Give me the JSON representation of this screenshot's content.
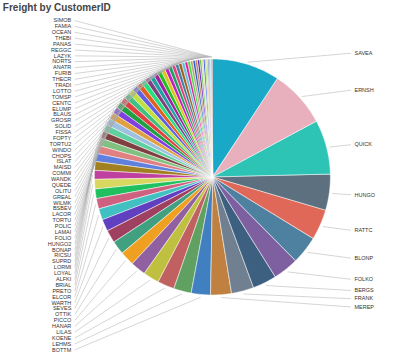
{
  "chart_data": {
    "type": "pie",
    "title": "Freight by CustomerID",
    "categories": [
      "SAVEA",
      "ERNSH",
      "QUICK",
      "HUNGO",
      "RATTC",
      "BLONP",
      "FOLKO",
      "BERGS",
      "FRANK",
      "MEREP",
      "BOTTM",
      "LEHMS",
      "KOENE",
      "LILAS",
      "HANAR",
      "PICCO",
      "OTTIK",
      "SEVES",
      "WARTH",
      "ELCOR",
      "PRETO",
      "BRIAL",
      "ALFKI",
      "LOYAL",
      "LORMI",
      "SUPRD",
      "RICSU",
      "BONAP",
      "HUNGO2",
      "FOLIO",
      "LAMAI",
      "POLIC",
      "TORTU",
      "LACOR",
      "BSBEV",
      "WILMK",
      "GREAL",
      "OLITU",
      "QUEDE",
      "WANDK",
      "COMMI",
      "MAISD",
      "ISLAT",
      "CHOPS",
      "WINDO",
      "TORTU2",
      "FOPTY",
      "FISSA",
      "SOLID",
      "GROSR",
      "BLAUS",
      "ELUMP",
      "CENTC",
      "TOMSP",
      "LOTTO",
      "TRADI",
      "THECR",
      "FURIB",
      "ANATR",
      "NORTS",
      "LAZYK",
      "REGGC",
      "PANAS",
      "THEBI",
      "OCEAN",
      "FAMIA",
      "SIMOB"
    ],
    "values": [
      8.5,
      7.2,
      6.8,
      4.5,
      3.8,
      3.5,
      3.2,
      3.0,
      2.8,
      2.6,
      2.4,
      2.2,
      2.1,
      2.0,
      1.9,
      1.8,
      1.7,
      1.6,
      1.5,
      1.4,
      1.3,
      1.2,
      1.2,
      1.1,
      1.1,
      1.0,
      1.0,
      0.95,
      0.9,
      0.88,
      0.85,
      0.82,
      0.8,
      0.78,
      0.75,
      0.72,
      0.7,
      0.68,
      0.65,
      0.62,
      0.6,
      0.58,
      0.55,
      0.52,
      0.5,
      0.48,
      0.46,
      0.44,
      0.42,
      0.4,
      0.38,
      0.36,
      0.34,
      0.32,
      0.3,
      0.28,
      0.26,
      0.24,
      0.22,
      0.2,
      0.18,
      0.16,
      0.14,
      0.12,
      0.1,
      0.1,
      0.1
    ],
    "colors": [
      "#1aa8c8",
      "#e8b0bc",
      "#2dc4b6",
      "#5d7080",
      "#e06858",
      "#4e80a0",
      "#7e60a0",
      "#3e6080",
      "#708090",
      "#c08040",
      "#4080c0",
      "#60a060",
      "#c06060",
      "#c0c040",
      "#9060a0",
      "#f0a020",
      "#40a080",
      "#a04060",
      "#6040c0",
      "#40c0c0",
      "#d06080",
      "#20c060",
      "#d8d860",
      "#c040a0",
      "#a08020",
      "#6080e0",
      "#e08080",
      "#80c080",
      "#804040",
      "#60d0a0",
      "#a0c0e0",
      "#e0a040",
      "#8040e0",
      "#20a040",
      "#e04040",
      "#40c080",
      "#c0e040",
      "#6060e0",
      "#e06020",
      "#20e080",
      "#804080",
      "#20a0a0",
      "#a020a0",
      "#20c020",
      "#e0c020",
      "#c020c0",
      "#20a060",
      "#e04080",
      "#4080a0",
      "#a06020",
      "#60c0e0",
      "#e020a0",
      "#40e040",
      "#c0a080",
      "#2060c0",
      "#c08060",
      "#6020c0",
      "#60c040",
      "#d8d8a0",
      "#2040e0",
      "#a0e040",
      "#e0a060",
      "#4060a0",
      "#c04020",
      "#20c0e0",
      "#e0c060",
      "#a02040"
    ]
  }
}
